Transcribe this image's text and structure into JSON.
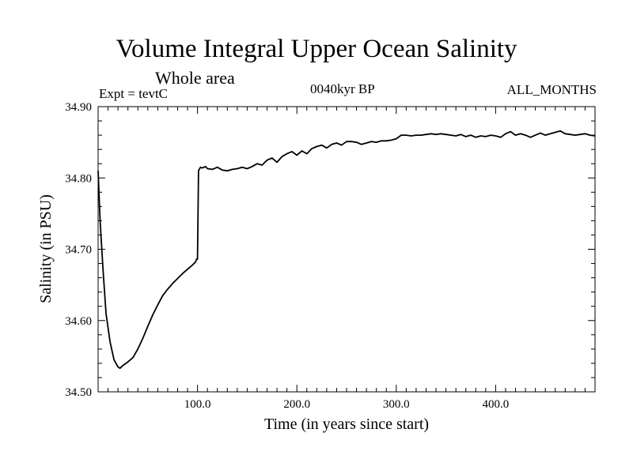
{
  "chart_data": {
    "type": "line",
    "title": "Volume Integral Upper Ocean Salinity",
    "subtitle": "Whole area",
    "annotations": {
      "experiment": "Expt = tevtC",
      "period": "0040kyr BP",
      "months": "ALL_MONTHS"
    },
    "xlabel": "Time (in years since start)",
    "ylabel": "Salinity (in PSU)",
    "xlim": [
      0,
      500
    ],
    "ylim": [
      34.5,
      34.9
    ],
    "xticks": [
      "100.0",
      "200.0",
      "300.0",
      "400.0"
    ],
    "yticks": [
      "34.50",
      "34.60",
      "34.70",
      "34.80",
      "34.90"
    ],
    "grid": false,
    "series": [
      {
        "x": [
          0,
          2,
          5,
          8,
          12,
          16,
          20,
          22,
          25,
          30,
          35,
          40,
          45,
          50,
          55,
          60,
          65,
          70,
          75,
          80,
          85,
          90,
          95,
          98,
          99,
          100,
          101,
          103,
          105,
          108,
          110,
          115,
          120,
          125,
          130,
          135,
          140,
          145,
          150,
          155,
          160,
          165,
          170,
          175,
          180,
          185,
          190,
          195,
          200,
          205,
          210,
          215,
          220,
          225,
          230,
          235,
          240,
          245,
          250,
          255,
          260,
          265,
          270,
          275,
          280,
          285,
          290,
          295,
          300,
          305,
          310,
          315,
          320,
          325,
          330,
          335,
          340,
          345,
          350,
          355,
          360,
          365,
          370,
          375,
          380,
          385,
          390,
          395,
          400,
          405,
          410,
          415,
          420,
          425,
          430,
          435,
          440,
          445,
          450,
          455,
          460,
          465,
          470,
          475,
          480,
          485,
          490,
          495,
          500
        ],
        "y": [
          34.81,
          34.74,
          34.67,
          34.61,
          34.57,
          34.545,
          34.535,
          34.533,
          34.537,
          34.542,
          34.548,
          34.56,
          34.575,
          34.592,
          34.608,
          34.622,
          34.635,
          34.644,
          34.652,
          34.659,
          34.666,
          34.672,
          34.678,
          34.682,
          34.686,
          34.686,
          34.81,
          34.815,
          34.814,
          34.816,
          34.813,
          34.812,
          34.815,
          34.811,
          34.81,
          34.812,
          34.813,
          34.815,
          34.813,
          34.816,
          34.82,
          34.818,
          34.825,
          34.828,
          34.822,
          34.83,
          34.834,
          34.837,
          34.832,
          34.838,
          34.834,
          34.841,
          34.844,
          34.846,
          34.842,
          34.847,
          34.849,
          34.846,
          34.851,
          34.851,
          34.85,
          34.847,
          34.849,
          34.851,
          34.85,
          34.852,
          34.852,
          34.853,
          34.855,
          34.86,
          34.86,
          34.859,
          34.86,
          34.86,
          34.861,
          34.862,
          34.861,
          34.862,
          34.861,
          34.86,
          34.859,
          34.861,
          34.858,
          34.86,
          34.857,
          34.859,
          34.858,
          34.86,
          34.859,
          34.857,
          34.862,
          34.865,
          34.86,
          34.862,
          34.86,
          34.857,
          34.86,
          34.863,
          34.86,
          34.862,
          34.864,
          34.866,
          34.862,
          34.861,
          34.86,
          34.861,
          34.862,
          34.86,
          34.859
        ]
      }
    ]
  }
}
